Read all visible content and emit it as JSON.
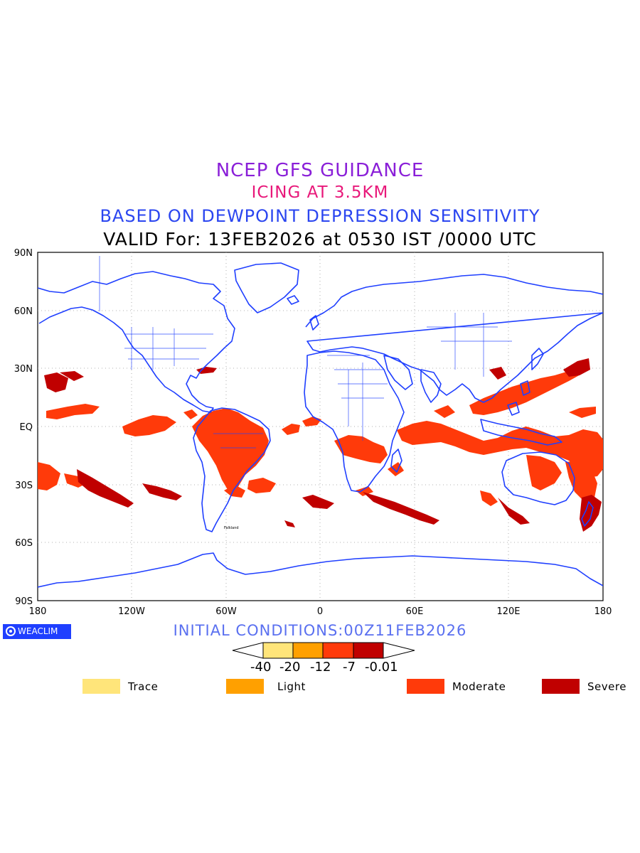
{
  "titles": {
    "line1": "NCEP GFS GUIDANCE",
    "line2": "ICING AT 3.5KM",
    "line3": "BASED ON DEWPOINT DEPRESSION SENSITIVITY",
    "line4": "VALID For: 13FEB2026 at 0530 IST /0000 UTC"
  },
  "colors": {
    "line1": "#8a1fd8",
    "line2": "#e8187a",
    "line3": "#2b46f0",
    "initcond": "#5a70f0",
    "coast": "#1f3fff",
    "trace": "#ffe57a",
    "light": "#ffa000",
    "moderate": "#ff3a0a",
    "severe": "#c00000"
  },
  "axes": {
    "lat_labels": [
      "90N",
      "60N",
      "30N",
      "EQ",
      "30S",
      "60S",
      "90S"
    ],
    "lon_labels": [
      "180",
      "120W",
      "60W",
      "0",
      "60E",
      "120E",
      "180"
    ]
  },
  "logo": {
    "text": "WEACLIM",
    "icon": "copyright-circle-icon"
  },
  "initial_conditions": "INITIAL CONDITIONS:00Z11FEB2026",
  "colorbar": {
    "labels": [
      "-40",
      "-20",
      "-12",
      "-7",
      "-0.01"
    ],
    "bins": [
      "trace",
      "light",
      "moderate",
      "severe"
    ]
  },
  "legend": [
    {
      "label": "Trace",
      "color": "#ffe57a"
    },
    {
      "label": "Light",
      "color": "#ffa000"
    },
    {
      "label": "Moderate",
      "color": "#ff3a0a"
    },
    {
      "label": "Severe",
      "color": "#c00000"
    }
  ],
  "map_labels": [
    "Falkland"
  ]
}
